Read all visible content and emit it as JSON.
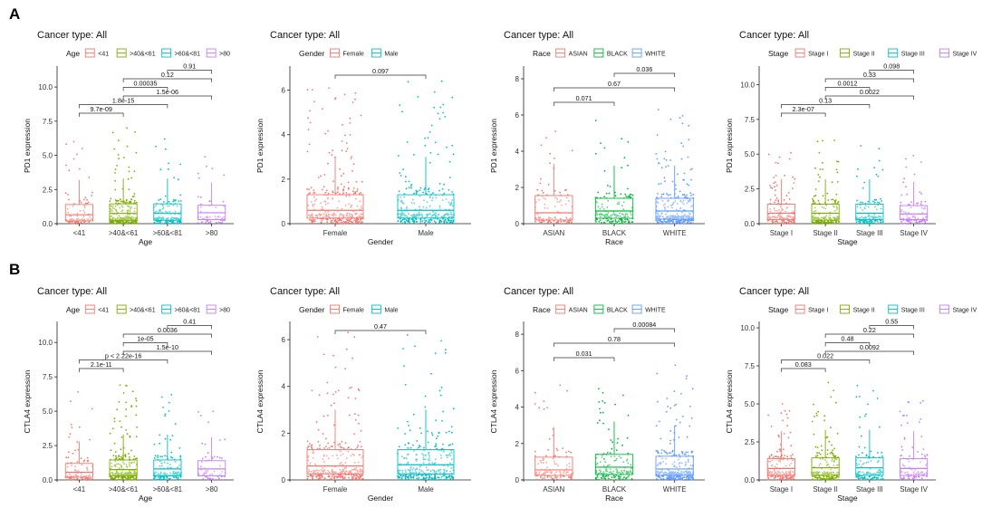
{
  "panel_letters": [
    "A",
    "B"
  ],
  "colors": {
    "four": [
      "#F8766D",
      "#7CAE00",
      "#00BFC4",
      "#C77CFF"
    ],
    "two": [
      "#F8766D",
      "#00BFC4"
    ],
    "three": [
      "#F8766D",
      "#00BA38",
      "#619CFF"
    ]
  },
  "chart_data": [
    {
      "id": "A1",
      "panel": "A",
      "type": "box-jitter",
      "title": "Cancer type: All",
      "legend_title": "Age",
      "categories": [
        "<41",
        ">40&<61",
        ">60&<81",
        ">80"
      ],
      "legend_labels": [
        "<41",
        ">40&<61",
        ">60&<81",
        ">80"
      ],
      "xlabel": "Age",
      "ylabel": "PD1 expression",
      "ylim": [
        0,
        11.4
      ],
      "yticks": [
        0,
        2.5,
        5,
        7.5,
        10
      ],
      "yticklabels": [
        "0.0",
        "2.5",
        "5.0",
        "7.5",
        "10.0"
      ],
      "boxes": [
        {
          "q1": 0.2,
          "median": 0.65,
          "q3": 1.4,
          "whisker_hi": 3.2,
          "max": 6.0,
          "n": 90
        },
        {
          "q1": 0.25,
          "median": 0.75,
          "q3": 1.45,
          "whisker_hi": 3.3,
          "max": 7.0,
          "n": 260
        },
        {
          "q1": 0.25,
          "median": 0.75,
          "q3": 1.45,
          "whisker_hi": 3.3,
          "max": 6.2,
          "n": 150
        },
        {
          "q1": 0.3,
          "median": 0.8,
          "q3": 1.35,
          "whisker_hi": 3.0,
          "max": 4.9,
          "n": 60
        }
      ],
      "comparisons": [
        {
          "from": 0,
          "to": 1,
          "label": "9.7e-09"
        },
        {
          "from": 0,
          "to": 2,
          "label": "1.8e-15"
        },
        {
          "from": 1,
          "to": 3,
          "label": "1.5e-06"
        },
        {
          "from": 1,
          "to": 2,
          "label": "0.00035"
        },
        {
          "from": 1,
          "to": 3,
          "label": "0.12"
        },
        {
          "from": 2,
          "to": 3,
          "label": "0.91"
        }
      ]
    },
    {
      "id": "A2",
      "panel": "A",
      "type": "box-jitter",
      "title": "Cancer type: All",
      "legend_title": "Gender",
      "categories": [
        "Female",
        "Male"
      ],
      "legend_labels": [
        "Female",
        "Male"
      ],
      "xlabel": "Gender",
      "ylabel": "PD1 expression",
      "ylim": [
        0,
        7.0
      ],
      "yticks": [
        0,
        2,
        4,
        6
      ],
      "yticklabels": [
        "0",
        "2",
        "4",
        "6"
      ],
      "boxes": [
        {
          "q1": 0.25,
          "median": 0.6,
          "q3": 1.3,
          "whisker_hi": 3.0,
          "max": 6.1,
          "n": 320
        },
        {
          "q1": 0.25,
          "median": 0.6,
          "q3": 1.3,
          "whisker_hi": 3.0,
          "max": 6.4,
          "n": 320
        }
      ],
      "comparisons": [
        {
          "from": 0,
          "to": 1,
          "label": "0.097"
        }
      ]
    },
    {
      "id": "A3",
      "panel": "A",
      "type": "box-jitter",
      "title": "Cancer type: All",
      "legend_title": "Race",
      "categories": [
        "ASIAN",
        "BLACK",
        "WHITE"
      ],
      "legend_labels": [
        "ASIAN",
        "BLACK",
        "WHITE"
      ],
      "xlabel": "Race",
      "ylabel": "PD1 expression",
      "ylim": [
        0,
        8.6
      ],
      "yticks": [
        0,
        2,
        4,
        6,
        8
      ],
      "yticklabels": [
        "0",
        "2",
        "4",
        "6",
        "8"
      ],
      "boxes": [
        {
          "q1": 0.2,
          "median": 0.6,
          "q3": 1.55,
          "whisker_hi": 3.3,
          "max": 5.1,
          "n": 110
        },
        {
          "q1": 0.3,
          "median": 0.7,
          "q3": 1.4,
          "whisker_hi": 3.2,
          "max": 5.7,
          "n": 150
        },
        {
          "q1": 0.25,
          "median": 0.7,
          "q3": 1.4,
          "whisker_hi": 3.2,
          "max": 6.3,
          "n": 320
        }
      ],
      "comparisons": [
        {
          "from": 0,
          "to": 1,
          "label": "0.071"
        },
        {
          "from": 0,
          "to": 2,
          "label": "0.67"
        },
        {
          "from": 1,
          "to": 2,
          "label": "0.036"
        }
      ]
    },
    {
      "id": "A4",
      "panel": "A",
      "type": "box-jitter",
      "title": "Cancer type: All",
      "legend_title": "Stage",
      "categories": [
        "Stage I",
        "Stage II",
        "Stage III",
        "Stage IV"
      ],
      "legend_labels": [
        "Stage I",
        "Stage II",
        "Stage III",
        "Stage IV"
      ],
      "xlabel": "Stage",
      "ylabel": "PD1 expression",
      "ylim": [
        0,
        11.2
      ],
      "yticks": [
        0,
        2.5,
        5,
        7.5,
        10
      ],
      "yticklabels": [
        "0.0",
        "2.5",
        "5.0",
        "7.5",
        "10.0"
      ],
      "boxes": [
        {
          "q1": 0.3,
          "median": 0.75,
          "q3": 1.4,
          "whisker_hi": 3.2,
          "max": 5.1,
          "n": 170
        },
        {
          "q1": 0.25,
          "median": 0.75,
          "q3": 1.4,
          "whisker_hi": 3.2,
          "max": 6.0,
          "n": 190
        },
        {
          "q1": 0.3,
          "median": 0.75,
          "q3": 1.4,
          "whisker_hi": 3.2,
          "max": 5.6,
          "n": 130
        },
        {
          "q1": 0.3,
          "median": 0.7,
          "q3": 1.3,
          "whisker_hi": 3.0,
          "max": 4.9,
          "n": 100
        }
      ],
      "comparisons": [
        {
          "from": 0,
          "to": 1,
          "label": "2.3e-07"
        },
        {
          "from": 0,
          "to": 2,
          "label": "0.13"
        },
        {
          "from": 1,
          "to": 3,
          "label": "0.0022"
        },
        {
          "from": 1,
          "to": 2,
          "label": "0.0012"
        },
        {
          "from": 1,
          "to": 3,
          "label": "0.33"
        },
        {
          "from": 2,
          "to": 3,
          "label": "0.098"
        }
      ]
    },
    {
      "id": "B1",
      "panel": "B",
      "type": "box-jitter",
      "title": "Cancer type: All",
      "legend_title": "Age",
      "categories": [
        "<41",
        ">40&<61",
        ">60&<81",
        ">80"
      ],
      "legend_labels": [
        "<41",
        ">40&<61",
        ">60&<81",
        ">80"
      ],
      "xlabel": "Age",
      "ylabel": "CTLA4 expression",
      "ylim": [
        0,
        11.4
      ],
      "yticks": [
        0,
        2.5,
        5,
        7.5,
        10
      ],
      "yticklabels": [
        "0.0",
        "2.5",
        "5.0",
        "7.5",
        "10.0"
      ],
      "boxes": [
        {
          "q1": 0.2,
          "median": 0.55,
          "q3": 1.2,
          "whisker_hi": 2.8,
          "max": 6.4,
          "n": 90
        },
        {
          "q1": 0.3,
          "median": 0.75,
          "q3": 1.45,
          "whisker_hi": 3.3,
          "max": 6.9,
          "n": 260
        },
        {
          "q1": 0.3,
          "median": 0.8,
          "q3": 1.45,
          "whisker_hi": 3.3,
          "max": 6.2,
          "n": 150
        },
        {
          "q1": 0.3,
          "median": 0.8,
          "q3": 1.4,
          "whisker_hi": 3.1,
          "max": 5.0,
          "n": 60
        }
      ],
      "comparisons": [
        {
          "from": 0,
          "to": 1,
          "label": "2.1e-11"
        },
        {
          "from": 0,
          "to": 2,
          "label": "p < 2.22e-16"
        },
        {
          "from": 1,
          "to": 3,
          "label": "1.5e-10"
        },
        {
          "from": 1,
          "to": 2,
          "label": "1e-05"
        },
        {
          "from": 1,
          "to": 3,
          "label": "0.0036"
        },
        {
          "from": 2,
          "to": 3,
          "label": "0.41"
        }
      ]
    },
    {
      "id": "B2",
      "panel": "B",
      "type": "box-jitter",
      "title": "Cancer type: All",
      "legend_title": "Gender",
      "categories": [
        "Female",
        "Male"
      ],
      "legend_labels": [
        "Female",
        "Male"
      ],
      "xlabel": "Gender",
      "ylabel": "CTLA4 expression",
      "ylim": [
        0,
        6.7
      ],
      "yticks": [
        0,
        2,
        4,
        6
      ],
      "yticklabels": [
        "0",
        "2",
        "4",
        "6"
      ],
      "boxes": [
        {
          "q1": 0.25,
          "median": 0.6,
          "q3": 1.3,
          "whisker_hi": 3.0,
          "max": 6.3,
          "n": 320
        },
        {
          "q1": 0.25,
          "median": 0.65,
          "q3": 1.3,
          "whisker_hi": 3.0,
          "max": 6.2,
          "n": 320
        }
      ],
      "comparisons": [
        {
          "from": 0,
          "to": 1,
          "label": "0.47"
        }
      ]
    },
    {
      "id": "B3",
      "panel": "B",
      "type": "box-jitter",
      "title": "Cancer type: All",
      "legend_title": "Race",
      "categories": [
        "ASIAN",
        "BLACK",
        "WHITE"
      ],
      "legend_labels": [
        "ASIAN",
        "BLACK",
        "WHITE"
      ],
      "xlabel": "Race",
      "ylabel": "CTLA4 expression",
      "ylim": [
        0,
        8.6
      ],
      "yticks": [
        0,
        2,
        4,
        6,
        8
      ],
      "yticklabels": [
        "0",
        "2",
        "4",
        "6",
        "8"
      ],
      "boxes": [
        {
          "q1": 0.25,
          "median": 0.55,
          "q3": 1.25,
          "whisker_hi": 2.9,
          "max": 5.2,
          "n": 110
        },
        {
          "q1": 0.3,
          "median": 0.7,
          "q3": 1.4,
          "whisker_hi": 3.2,
          "max": 5.0,
          "n": 150
        },
        {
          "q1": 0.25,
          "median": 0.6,
          "q3": 1.3,
          "whisker_hi": 3.0,
          "max": 6.3,
          "n": 320
        }
      ],
      "comparisons": [
        {
          "from": 0,
          "to": 1,
          "label": "0.031"
        },
        {
          "from": 0,
          "to": 2,
          "label": "0.78"
        },
        {
          "from": 1,
          "to": 2,
          "label": "0.00084"
        }
      ]
    },
    {
      "id": "B4",
      "panel": "B",
      "type": "box-jitter",
      "title": "Cancer type: All",
      "legend_title": "Stage",
      "categories": [
        "Stage I",
        "Stage II",
        "Stage III",
        "Stage IV"
      ],
      "legend_labels": [
        "Stage I",
        "Stage II",
        "Stage III",
        "Stage IV"
      ],
      "xlabel": "Stage",
      "ylabel": "CTLA4 expression",
      "ylim": [
        0,
        10.3
      ],
      "yticks": [
        0,
        2.5,
        5,
        7.5,
        10
      ],
      "yticklabels": [
        "0.0",
        "2.5",
        "5.0",
        "7.5",
        "10.0"
      ],
      "boxes": [
        {
          "q1": 0.3,
          "median": 0.75,
          "q3": 1.4,
          "whisker_hi": 3.2,
          "max": 5.0,
          "n": 170
        },
        {
          "q1": 0.3,
          "median": 0.8,
          "q3": 1.45,
          "whisker_hi": 3.3,
          "max": 6.4,
          "n": 190
        },
        {
          "q1": 0.3,
          "median": 0.8,
          "q3": 1.45,
          "whisker_hi": 3.3,
          "max": 6.2,
          "n": 130
        },
        {
          "q1": 0.3,
          "median": 0.75,
          "q3": 1.4,
          "whisker_hi": 3.2,
          "max": 5.2,
          "n": 100
        }
      ],
      "comparisons": [
        {
          "from": 0,
          "to": 1,
          "label": "0.083"
        },
        {
          "from": 0,
          "to": 2,
          "label": "0.022"
        },
        {
          "from": 1,
          "to": 3,
          "label": "0.0092"
        },
        {
          "from": 1,
          "to": 2,
          "label": "0.48"
        },
        {
          "from": 1,
          "to": 3,
          "label": "0.22"
        },
        {
          "from": 2,
          "to": 3,
          "label": "0.55"
        }
      ]
    }
  ]
}
